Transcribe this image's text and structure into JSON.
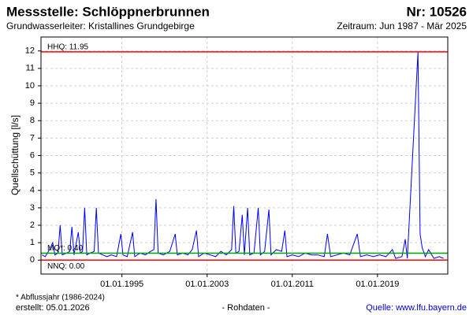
{
  "chart_data": {
    "type": "line",
    "title": "Messstelle: Schlöppnerbrunnen",
    "number": "Nr: 10526",
    "subtitle": "Grundwasserleiter: Kristallines Grundgebirge",
    "period": "Zeitraum: Jun 1987 - Mär 2025",
    "y_label": "Quellschüttung [l/s]",
    "footnote": "* Abflussjahr (1986-2024)",
    "created": "erstellt:  05.01.2026",
    "note": "- Rohdaten -",
    "source": "Quelle: www.lfu.bayern.de",
    "x": [
      1987.5,
      1987.8,
      1988.2,
      1988.5,
      1988.7,
      1989.0,
      1989.2,
      1989.4,
      1989.8,
      1990.1,
      1990.3,
      1990.5,
      1990.9,
      1991.1,
      1991.3,
      1991.5,
      1991.7,
      1992.0,
      1992.4,
      1992.6,
      1992.8,
      1993.2,
      1993.6,
      1994.0,
      1994.5,
      1994.9,
      1995.1,
      1995.5,
      1996.0,
      1996.2,
      1996.7,
      1997.2,
      1997.7,
      1998.0,
      1998.2,
      1998.4,
      1998.9,
      1999.5,
      2000.0,
      2000.2,
      2000.7,
      2001.2,
      2001.6,
      2002.0,
      2002.2,
      2002.7,
      2003.3,
      2003.8,
      2004.3,
      2004.8,
      2005.3,
      2005.5,
      2005.7,
      2006.0,
      2006.3,
      2006.5,
      2006.8,
      2007.0,
      2007.4,
      2007.8,
      2008.0,
      2008.4,
      2008.8,
      2009.0,
      2009.5,
      2010.0,
      2010.3,
      2010.5,
      2011.0,
      2011.6,
      2012.2,
      2012.8,
      2013.4,
      2014.0,
      2014.3,
      2014.6,
      2015.2,
      2015.8,
      2016.4,
      2017.1,
      2017.4,
      2018.0,
      2018.6,
      2019.2,
      2019.8,
      2020.4,
      2020.7,
      2021.3,
      2021.6,
      2021.8,
      2022.8,
      2023.0,
      2023.2,
      2023.5,
      2023.8,
      2024.3,
      2024.8,
      2025.2
    ],
    "series": [
      {
        "color": "#0000ff",
        "values": [
          0.3,
          0.2,
          0.6,
          1.0,
          0.3,
          0.4,
          2.0,
          0.3,
          0.4,
          0.5,
          1.9,
          0.3,
          1.6,
          0.4,
          0.5,
          3.0,
          0.3,
          0.4,
          0.5,
          3.0,
          0.4,
          0.3,
          0.2,
          0.3,
          0.2,
          1.5,
          0.3,
          0.2,
          1.6,
          0.2,
          0.4,
          0.3,
          0.5,
          0.6,
          3.5,
          0.4,
          0.3,
          0.5,
          1.5,
          0.3,
          0.4,
          0.3,
          0.6,
          1.7,
          0.2,
          0.4,
          0.3,
          0.2,
          0.5,
          0.3,
          0.6,
          3.1,
          0.4,
          0.5,
          2.6,
          0.3,
          3.0,
          0.3,
          0.4,
          3.0,
          0.3,
          0.5,
          2.9,
          0.3,
          0.6,
          0.5,
          1.7,
          0.2,
          0.3,
          0.2,
          0.4,
          0.3,
          0.3,
          0.2,
          1.5,
          0.2,
          0.3,
          0.4,
          0.3,
          1.5,
          0.2,
          0.3,
          0.2,
          0.3,
          0.2,
          0.6,
          0.1,
          0.2,
          1.2,
          0.1,
          11.95,
          1.5,
          0.7,
          0.2,
          0.6,
          0.1,
          0.2,
          0.1
        ]
      }
    ],
    "reference_lines": [
      {
        "label": "HHQ: 11.95",
        "value": 11.95,
        "color": "#ff0000"
      },
      {
        "label": "MQ*: 0.40",
        "value": 0.4,
        "color": "#00a000"
      },
      {
        "label": "NNQ: 0.00",
        "value": 0,
        "color": "#ff0000"
      }
    ],
    "xlim": [
      1987.4,
      2025.6
    ],
    "xticks": [
      {
        "value": 1995,
        "label": "01.01.1995"
      },
      {
        "value": 2003,
        "label": "01.01.2003"
      },
      {
        "value": 2011,
        "label": "01.01.2011"
      },
      {
        "value": 2019,
        "label": "01.01.2019"
      }
    ],
    "ylim": [
      -0.8,
      12.8
    ],
    "yticks": [
      0,
      1,
      2,
      3,
      4,
      5,
      6,
      7,
      8,
      9,
      10,
      11,
      12
    ],
    "grid": true
  }
}
